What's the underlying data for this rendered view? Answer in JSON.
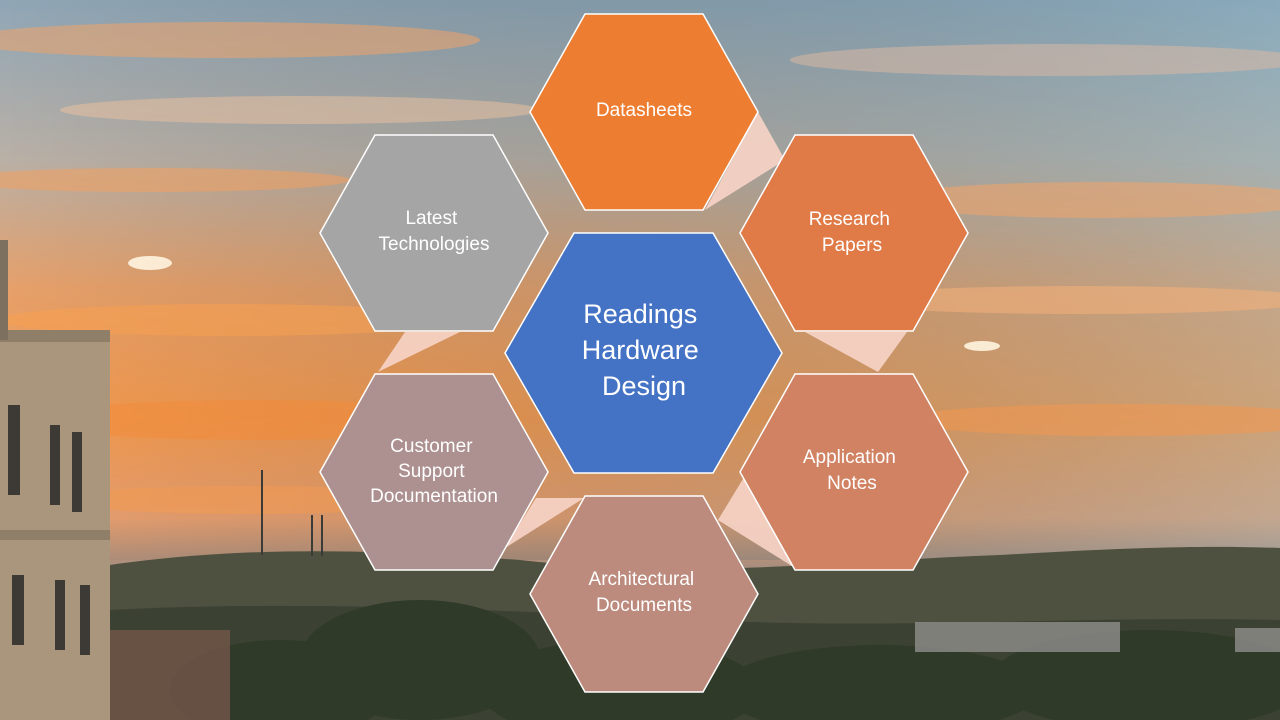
{
  "center": {
    "lines": [
      "Readings",
      "Hardware",
      "Design"
    ],
    "color": "#4472c4"
  },
  "nodes": [
    {
      "id": "datasheets",
      "lines": [
        "Datasheets"
      ],
      "color": "#ed7d31"
    },
    {
      "id": "research-papers",
      "lines": [
        "Research",
        "Papers"
      ],
      "color": "#e07a47"
    },
    {
      "id": "application-notes",
      "lines": [
        "Application",
        "Notes"
      ],
      "color": "#d08262"
    },
    {
      "id": "architectural-documents",
      "lines": [
        "Architectural",
        "Documents"
      ],
      "color": "#bc8b7d"
    },
    {
      "id": "customer-support-documentation",
      "lines": [
        "Customer",
        "Support",
        "Documentation"
      ],
      "color": "#ad9090"
    },
    {
      "id": "latest-technologies",
      "lines": [
        "Latest",
        "Technologies"
      ],
      "color": "#a5a5a5"
    }
  ],
  "connector_color": "#f6d2c6"
}
